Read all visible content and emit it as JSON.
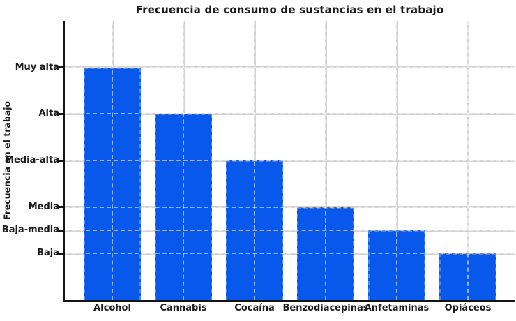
{
  "chart_data": {
    "type": "bar",
    "title": "Frecuencia de consumo de sustancias en el trabajo",
    "xlabel": "",
    "ylabel": "Frecuencia en el trabajo",
    "categories": [
      "Alcohol",
      "Cannabis",
      "Cocaína",
      "Benzodiacepinas",
      "Anfetaminas",
      "Opiáceos"
    ],
    "values": [
      10,
      8,
      6,
      4,
      3,
      2
    ],
    "ylim": [
      0,
      12
    ],
    "yticks": [
      {
        "value": 10,
        "label": "Muy alta"
      },
      {
        "value": 8,
        "label": "Alta"
      },
      {
        "value": 6,
        "label": "Media-alta"
      },
      {
        "value": 4,
        "label": "Media"
      },
      {
        "value": 3,
        "label": "Baja-media"
      },
      {
        "value": 2,
        "label": "Baja"
      }
    ],
    "grid": true,
    "legend_visible": false,
    "style": "xkcd-sketch",
    "colors": {
      "bar": "#0758eb",
      "grid": "#d3d3d3",
      "grid_dash_overlay": "rgba(255,255,255,0.55)",
      "axis": "#141414",
      "text": "#1b1b1b",
      "background": "#ffffff"
    }
  }
}
